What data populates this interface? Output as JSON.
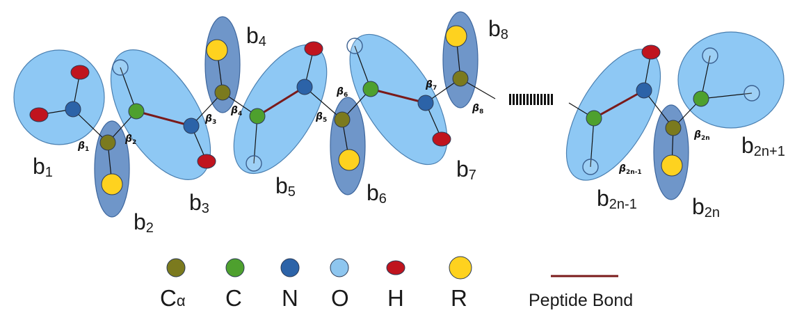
{
  "colors": {
    "c_alpha": "#7b7a1e",
    "c": "#4ea02e",
    "n": "#2c63a8",
    "o": "#8ec6ef",
    "h": "#c0141e",
    "r": "#fed21f",
    "light_group": "#8ec8f4",
    "dark_group": "#6f96c9",
    "peptide_bond": "#7a1a1a"
  },
  "groups": [
    {
      "base": "b",
      "sub": "1"
    },
    {
      "base": "b",
      "sub": "2"
    },
    {
      "base": "b",
      "sub": "3"
    },
    {
      "base": "b",
      "sub": "4"
    },
    {
      "base": "b",
      "sub": "5"
    },
    {
      "base": "b",
      "sub": "6"
    },
    {
      "base": "b",
      "sub": "7"
    },
    {
      "base": "b",
      "sub": "8"
    },
    {
      "base": "b",
      "sub": "2n-1"
    },
    {
      "base": "b",
      "sub": "2n"
    },
    {
      "base": "b",
      "sub": "2n+1"
    }
  ],
  "betas": [
    {
      "sym": "β",
      "sub": "1"
    },
    {
      "sym": "β",
      "sub": "2"
    },
    {
      "sym": "β",
      "sub": "3"
    },
    {
      "sym": "β",
      "sub": "4"
    },
    {
      "sym": "β",
      "sub": "5"
    },
    {
      "sym": "β",
      "sub": "6"
    },
    {
      "sym": "β",
      "sub": "7"
    },
    {
      "sym": "β",
      "sub": "8"
    },
    {
      "sym": "β",
      "sub": "2n-1"
    },
    {
      "sym": "β",
      "sub": "2n"
    }
  ],
  "legend": {
    "atoms": [
      {
        "label": "C",
        "sub": "α",
        "color_key": "c_alpha"
      },
      {
        "label": "C",
        "sub": "",
        "color_key": "c"
      },
      {
        "label": "N",
        "sub": "",
        "color_key": "n"
      },
      {
        "label": "O",
        "sub": "",
        "color_key": "o"
      },
      {
        "label": "H",
        "sub": "",
        "color_key": "h"
      },
      {
        "label": "R",
        "sub": "",
        "color_key": "r"
      }
    ],
    "bond_label": "Peptide Bond"
  }
}
